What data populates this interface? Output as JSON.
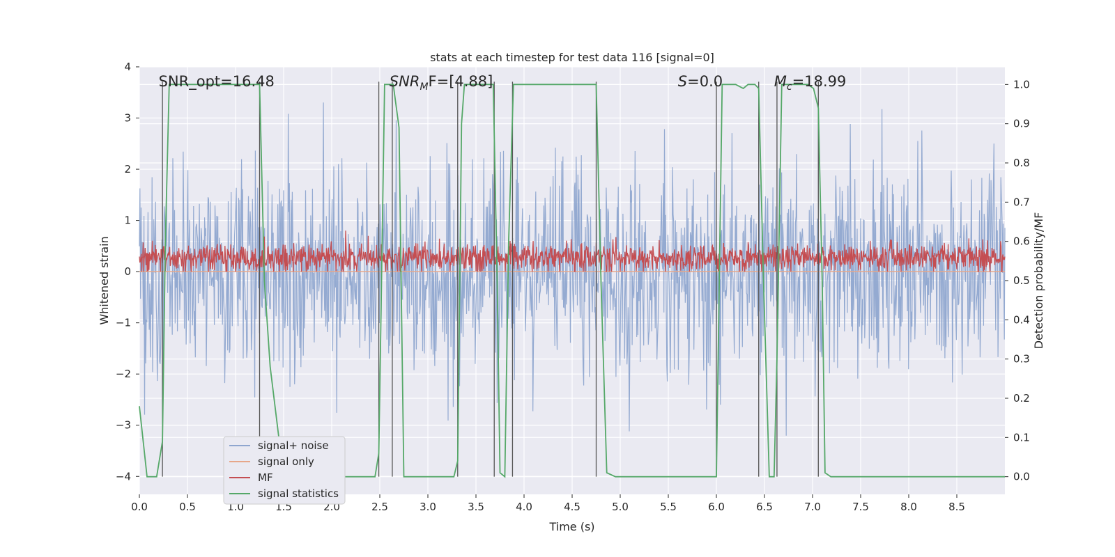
{
  "chart_data": {
    "type": "line",
    "title": "stats at each timestep for test data 116 [signal=0]",
    "xlabel": "Time (s)",
    "ylabel": "Whitened strain",
    "ylabel_right": "Detection probability/MF",
    "xlim": [
      0,
      9.0
    ],
    "ylim": [
      -4.35,
      4.0
    ],
    "ylim_right": [
      -0.045,
      1.045
    ],
    "x_ticks": [
      0.0,
      0.5,
      1.0,
      1.5,
      2.0,
      2.5,
      3.0,
      3.5,
      4.0,
      4.5,
      5.0,
      5.5,
      6.0,
      6.5,
      7.0,
      7.5,
      8.0,
      8.5
    ],
    "x_tick_labels": [
      "0.0",
      "0.5",
      "1.0",
      "1.5",
      "2.0",
      "2.5",
      "3.0",
      "3.5",
      "4.0",
      "4.5",
      "5.0",
      "5.5",
      "6.0",
      "6.5",
      "7.0",
      "7.5",
      "8.0",
      "8.5"
    ],
    "y_ticks": [
      4,
      3,
      2,
      1,
      0,
      -1,
      -2,
      -3,
      -4
    ],
    "y_tick_labels": [
      "4",
      "3",
      "2",
      "1",
      "0",
      "−1",
      "−2",
      "−3",
      "−4"
    ],
    "y_right_ticks": [
      1.0,
      0.9,
      0.8,
      0.7,
      0.6,
      0.5,
      0.4,
      0.3,
      0.2,
      0.1,
      0.0
    ],
    "y_right_tick_labels": [
      "1.0",
      "0.9",
      "0.8",
      "0.7",
      "0.6",
      "0.5",
      "0.4",
      "0.3",
      "0.2",
      "0.1",
      "0.0"
    ],
    "grid": true,
    "legend_position": "lower-left",
    "annotations": [
      {
        "prefix": "SNR_opt=16.48",
        "sub": "",
        "suffix": "",
        "x": 0.2,
        "italic": false
      },
      {
        "prefix": "SNR",
        "sub": "M",
        "suffix": "F=[4.88]",
        "x": 2.6,
        "italic": true
      },
      {
        "prefix": "S",
        "sub": "",
        "suffix": "=0.0",
        "x": 5.6,
        "italic": true
      },
      {
        "prefix": "M",
        "sub": "c",
        "suffix": "=18.99",
        "x": 6.6,
        "italic": true
      }
    ],
    "vlines_x": [
      0.24,
      1.25,
      2.49,
      2.63,
      3.31,
      3.69,
      3.88,
      4.75,
      6.0,
      6.44,
      6.63,
      7.06
    ],
    "series": [
      {
        "name": "signal+ noise",
        "color": "#8fa6cf",
        "kind": "noise",
        "amplitude_typical": 1.0,
        "amplitude_peak": 3.9
      },
      {
        "name": "signal only",
        "color": "#e7a78a",
        "kind": "flat",
        "value": 0.0
      },
      {
        "name": "MF",
        "color": "#c44e52",
        "kind": "mf",
        "range": [
          0.0,
          0.8
        ]
      },
      {
        "name": "signal statistics",
        "color": "#55a868",
        "kind": "line",
        "axis": "right",
        "x": [
          0.0,
          0.08,
          0.18,
          0.24,
          0.27,
          0.31,
          0.5,
          1.0,
          1.25,
          1.3,
          1.36,
          1.5,
          2.0,
          2.45,
          2.49,
          2.55,
          2.64,
          2.7,
          2.75,
          3.0,
          3.27,
          3.31,
          3.35,
          3.38,
          3.5,
          3.68,
          3.72,
          3.75,
          3.8,
          3.84,
          3.89,
          3.93,
          4.0,
          4.5,
          4.75,
          4.8,
          4.86,
          4.95,
          5.5,
          5.95,
          6.0,
          6.06,
          6.2,
          6.28,
          6.33,
          6.4,
          6.44,
          6.49,
          6.55,
          6.6,
          6.63,
          6.68,
          6.8,
          6.95,
          7.01,
          7.06,
          7.1,
          7.13,
          7.19,
          7.24,
          7.5,
          8.0,
          8.5,
          9.0
        ],
        "y": [
          0.18,
          0.0,
          0.0,
          0.09,
          0.6,
          1.0,
          1.0,
          1.0,
          1.0,
          0.5,
          0.28,
          0.0,
          0.0,
          0.0,
          0.06,
          1.0,
          1.0,
          0.89,
          0.0,
          0.0,
          0.0,
          0.04,
          0.9,
          1.0,
          1.0,
          1.0,
          0.5,
          0.01,
          0.0,
          0.6,
          1.0,
          1.0,
          1.0,
          1.0,
          1.0,
          0.5,
          0.01,
          0.0,
          0.0,
          0.0,
          0.0,
          1.0,
          1.0,
          0.99,
          1.0,
          1.0,
          0.99,
          0.5,
          0.0,
          0.0,
          0.3,
          1.0,
          1.0,
          1.0,
          0.99,
          0.94,
          0.5,
          0.01,
          0.0,
          0.0,
          0.0,
          0.0,
          0.0,
          0.0
        ]
      }
    ]
  }
}
